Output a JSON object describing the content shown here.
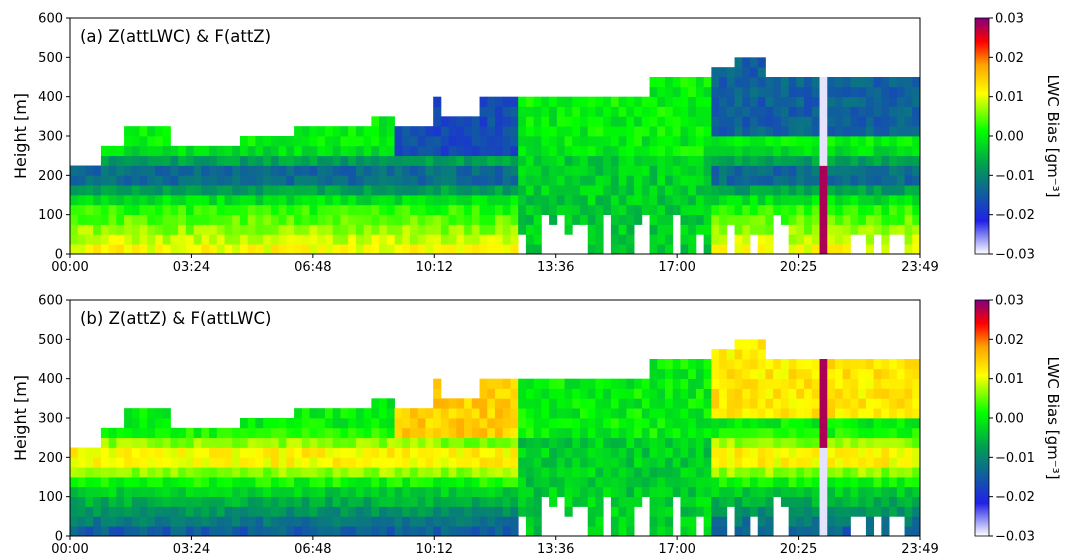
{
  "chart_data": [
    {
      "type": "heatmap",
      "title": "(a) Z(attLWC) & F(attZ)",
      "ylabel": "Height [m]",
      "x_ticks": [
        "00:00",
        "03:24",
        "06:48",
        "10:12",
        "13:36",
        "17:00",
        "20:25",
        "23:49"
      ],
      "y_ticks": [
        "0",
        "100",
        "200",
        "300",
        "400",
        "500",
        "600"
      ],
      "ylim": [
        0,
        600
      ],
      "xlim_hours": [
        0,
        23.82
      ],
      "colorbar": {
        "label": "LWC Bias [gm⁻³]",
        "ticks": [
          "0.03",
          "0.02",
          "0.01",
          "0.00",
          "−0.01",
          "−0.02",
          "−0.03"
        ],
        "range": [
          -0.03,
          0.03
        ],
        "colormap": [
          "#ffffff",
          "#2020e8",
          "#00a050",
          "#00ff00",
          "#ffff00",
          "#ffa500",
          "#ff0000",
          "#800080"
        ]
      },
      "bias_pattern": {
        "low_layer_0_120m": 0.012,
        "upper_layer_150_260m": -0.016,
        "morning_cloud_top_m": 350,
        "afternoon_cloud_top_m": 420,
        "late_evening_spike_hour": 21.2,
        "late_evening_spike_value": 0.028
      }
    },
    {
      "type": "heatmap",
      "title": "(b) Z(attZ) & F(attLWC)",
      "ylabel": "Height [m]",
      "x_ticks": [
        "00:00",
        "03:24",
        "06:48",
        "10:12",
        "13:36",
        "17:00",
        "20:25",
        "23:49"
      ],
      "y_ticks": [
        "0",
        "100",
        "200",
        "300",
        "400",
        "500",
        "600"
      ],
      "ylim": [
        0,
        600
      ],
      "xlim_hours": [
        0,
        23.82
      ],
      "colorbar": {
        "label": "LWC Bias [gm⁻³]",
        "ticks": [
          "0.03",
          "0.02",
          "0.01",
          "0.00",
          "−0.01",
          "−0.02",
          "−0.03"
        ],
        "range": [
          -0.03,
          0.03
        ],
        "colormap": [
          "#ffffff",
          "#2020e8",
          "#00a050",
          "#00ff00",
          "#ffff00",
          "#ffa500",
          "#ff0000",
          "#800080"
        ]
      },
      "bias_pattern": {
        "low_layer_0_120m": -0.016,
        "upper_layer_150_260m": 0.014,
        "morning_cloud_top_m": 350,
        "afternoon_cloud_top_m": 420,
        "late_evening_spike_hour": 21.2,
        "late_evening_spike_value": 0.028
      }
    }
  ]
}
